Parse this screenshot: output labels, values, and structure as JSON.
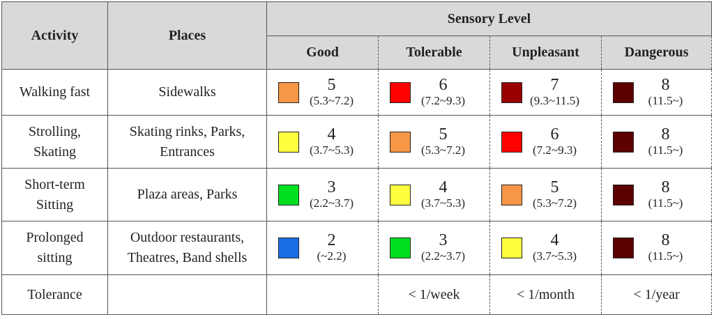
{
  "header": {
    "activity": "Activity",
    "places": "Places",
    "group": "Sensory Level",
    "levels": [
      "Good",
      "Tolerable",
      "Unpleasant",
      "Dangerous"
    ]
  },
  "rows": [
    {
      "activity": [
        "Walking fast"
      ],
      "places": [
        "Sidewalks"
      ],
      "cells": [
        {
          "level": 5,
          "range": "(5.3~7.2)",
          "color": "#f79646"
        },
        {
          "level": 6,
          "range": "(7.2~9.3)",
          "color": "#ff0000"
        },
        {
          "level": 7,
          "range": "(9.3~11.5)",
          "color": "#990000"
        },
        {
          "level": 8,
          "range": "(11.5~)",
          "color": "#5c0000"
        }
      ]
    },
    {
      "activity": [
        "Strolling,",
        "Skating"
      ],
      "places": [
        "Skating rinks, Parks,",
        "Entrances"
      ],
      "cells": [
        {
          "level": 4,
          "range": "(3.7~5.3)",
          "color": "#ffff40"
        },
        {
          "level": 5,
          "range": "(5.3~7.2)",
          "color": "#f79646"
        },
        {
          "level": 6,
          "range": "(7.2~9.3)",
          "color": "#ff0000"
        },
        {
          "level": 8,
          "range": "(11.5~)",
          "color": "#5c0000"
        }
      ]
    },
    {
      "activity": [
        "Short-term",
        "Sitting"
      ],
      "places": [
        "Plaza areas, Parks"
      ],
      "cells": [
        {
          "level": 3,
          "range": "(2.2~3.7)",
          "color": "#00e020"
        },
        {
          "level": 4,
          "range": "(3.7~5.3)",
          "color": "#ffff40"
        },
        {
          "level": 5,
          "range": "(5.3~7.2)",
          "color": "#f79646"
        },
        {
          "level": 8,
          "range": "(11.5~)",
          "color": "#5c0000"
        }
      ]
    },
    {
      "activity": [
        "Prolonged",
        "sitting"
      ],
      "places": [
        "Outdoor restaurants,",
        "Theatres, Band shells"
      ],
      "cells": [
        {
          "level": 2,
          "range": "(~2.2)",
          "color": "#1a6ee6"
        },
        {
          "level": 3,
          "range": "(2.2~3.7)",
          "color": "#00e020"
        },
        {
          "level": 4,
          "range": "(3.7~5.3)",
          "color": "#ffff40"
        },
        {
          "level": 8,
          "range": "(11.5~)",
          "color": "#5c0000"
        }
      ]
    }
  ],
  "tolerance": {
    "label": "Tolerance",
    "values": [
      "< 1/week",
      "< 1/month",
      "< 1/year"
    ]
  }
}
